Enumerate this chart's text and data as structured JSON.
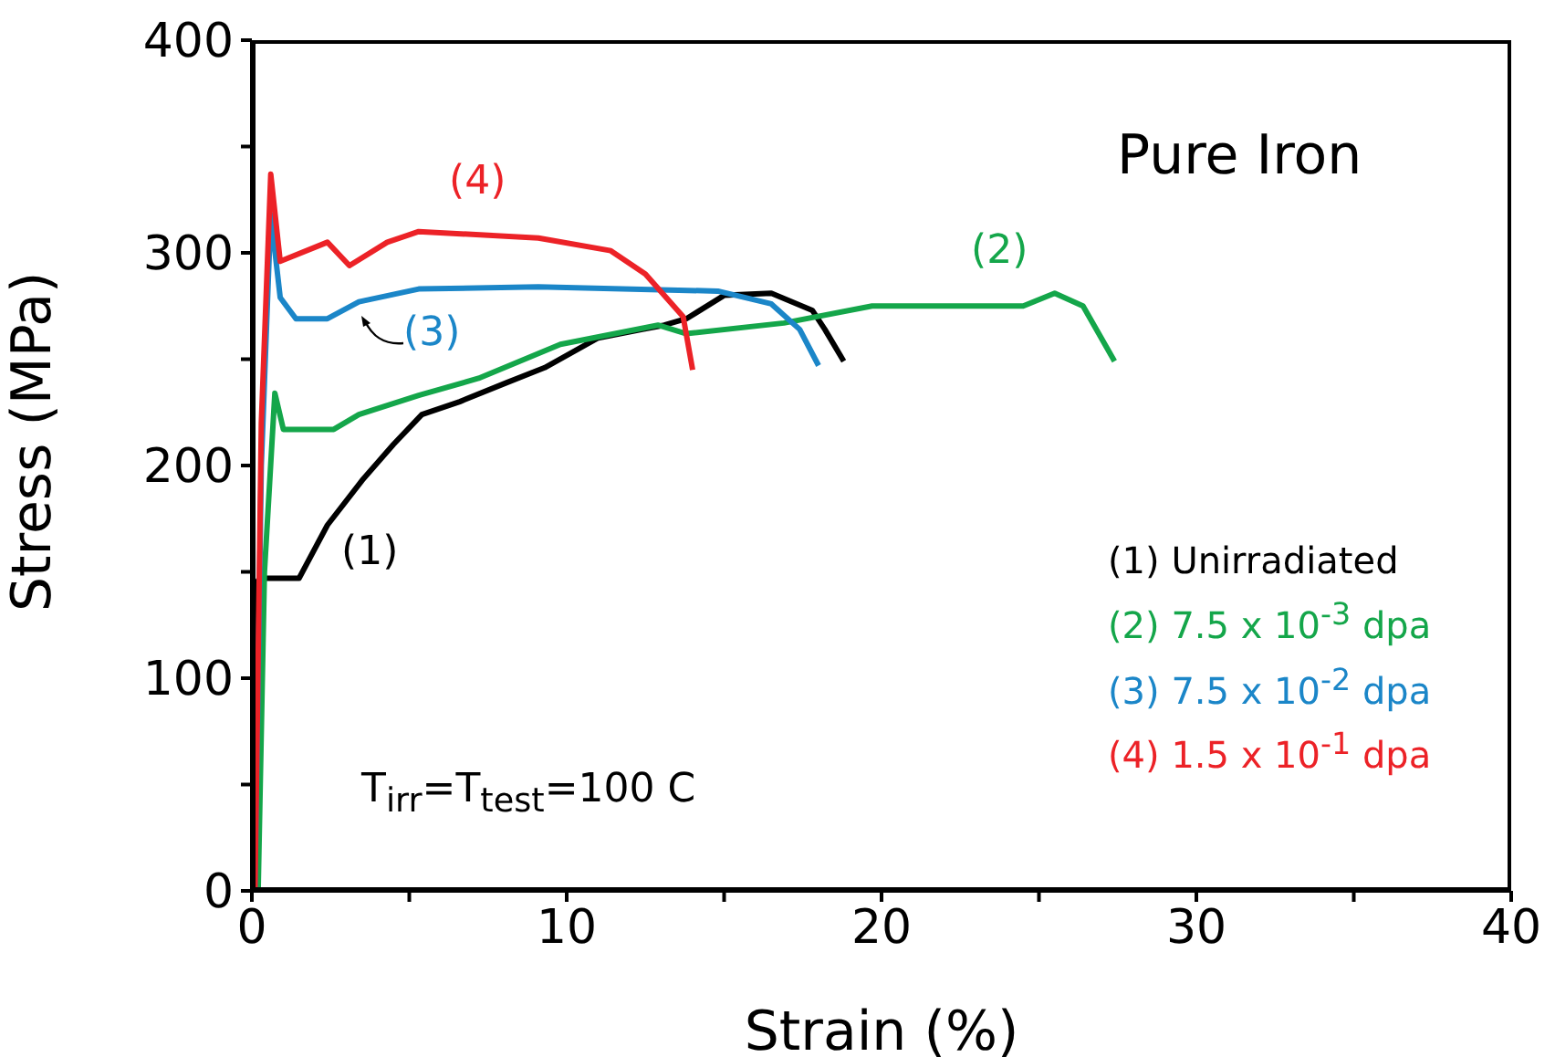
{
  "chart_data": {
    "type": "line",
    "title": "Pure Iron",
    "xlabel": "Strain (%)",
    "ylabel": "Stress (MPa)",
    "xlim": [
      0,
      40
    ],
    "xticks": [
      0,
      {
        "value": 5,
        "label": null
      },
      10,
      {
        "value": 15,
        "label": null
      },
      20,
      {
        "value": 25,
        "label": null
      },
      30,
      {
        "value": 35,
        "label": null
      },
      40
    ],
    "ylim": [
      0,
      400
    ],
    "yticks": [
      0,
      {
        "value": 50,
        "label": null
      },
      100,
      {
        "value": 150,
        "label": null
      },
      200,
      {
        "value": 250,
        "label": null
      },
      300,
      {
        "value": 350,
        "label": null
      },
      400
    ],
    "grid": false,
    "legend": "bottom right",
    "marker": "none",
    "line_style": "solid",
    "series": [
      {
        "name": "(1) Unirradiated",
        "color": "#000000",
        "x": [
          0.1,
          0.2,
          0.2,
          0.3,
          1.5,
          2.4,
          3.5,
          4.5,
          5.4,
          6.6,
          8.1,
          9.3,
          11,
          12.4,
          13.1,
          13.8,
          15.0,
          16.5,
          17.8,
          18.2,
          18.8
        ],
        "values": [
          0,
          107,
          146,
          147,
          147,
          172,
          193,
          210,
          224,
          230,
          239,
          246,
          260,
          264,
          266,
          269,
          280,
          281,
          273,
          264,
          249
        ]
      },
      {
        "name": "(2) 7.5 x 10$^{-3}$ dpa",
        "color": "#14a64a",
        "x": [
          0.2,
          0.4,
          0.73,
          1.0,
          2.6,
          3.4,
          5.3,
          7.2,
          9.8,
          12.9,
          13.8,
          16.9,
          19.7,
          24.5,
          25.5,
          26.4,
          27.4
        ],
        "values": [
          0,
          150,
          234,
          217,
          217,
          224,
          233,
          241,
          257,
          266,
          262,
          267,
          275,
          275,
          281,
          275,
          249
        ]
      },
      {
        "name": "(3) 7.5 x 10$^{-2}$ dpa",
        "color": "#1b86c8",
        "x": [
          0.1,
          0.3,
          0.6,
          0.9,
          1.4,
          2.4,
          3.4,
          5.3,
          9.1,
          14.8,
          16.5,
          17.4,
          18.0
        ],
        "values": [
          0,
          200,
          318,
          279,
          269,
          269,
          277,
          283,
          284,
          282,
          276,
          264,
          247
        ]
      },
      {
        "name": "(4) 1.5 x 10$^{-1}$ dpa",
        "color": "#ec2227",
        "x": [
          0.1,
          0.3,
          0.6,
          0.9,
          2.4,
          3.1,
          4.3,
          5.3,
          9.1,
          11.4,
          12.5,
          13.7,
          14.0
        ],
        "values": [
          0,
          220,
          337,
          296,
          305,
          294,
          305,
          310,
          307,
          301,
          290,
          270,
          245
        ]
      }
    ],
    "annotations": [
      "(1)",
      "(2)",
      "(3)",
      "(4)",
      "T$_{irr}$=T$_{test}$=100 C"
    ]
  }
}
